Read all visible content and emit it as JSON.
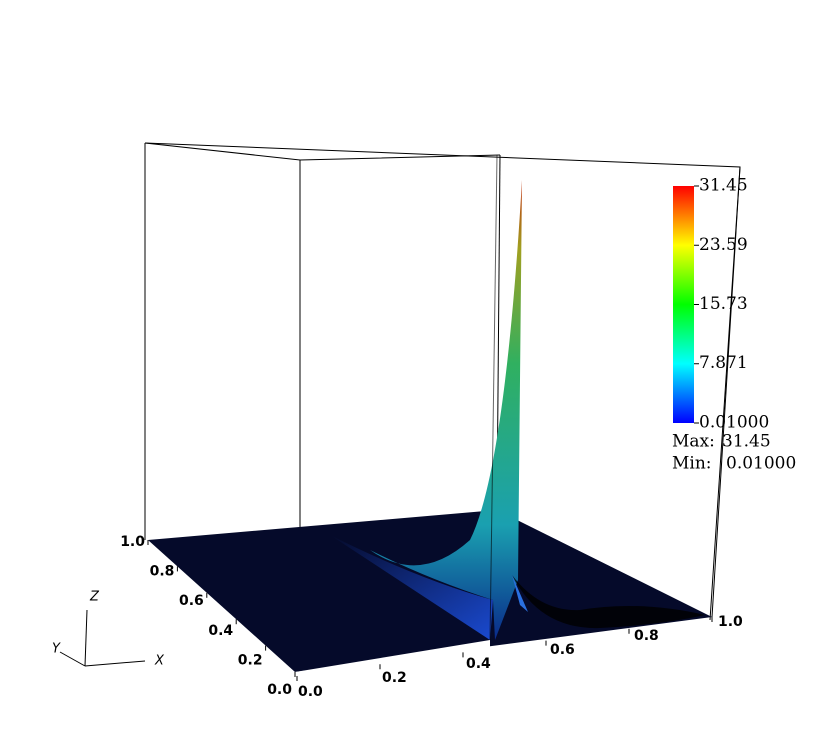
{
  "chart_data": {
    "type": "surface",
    "xticks": [
      {
        "value": 0,
        "label": "0.0"
      },
      {
        "value": 0.2,
        "label": "0.2"
      },
      {
        "value": 0.4,
        "label": "0.4"
      },
      {
        "value": 0.6,
        "label": "0.6"
      },
      {
        "value": 0.8,
        "label": "0.8"
      },
      {
        "value": 1,
        "label": "1.0"
      }
    ],
    "yticks": [
      {
        "value": 0,
        "label": "0.0"
      },
      {
        "value": 0.2,
        "label": "0.2"
      },
      {
        "value": 0.4,
        "label": "0.4"
      },
      {
        "value": 0.6,
        "label": "0.6"
      },
      {
        "value": 0.8,
        "label": "0.8"
      },
      {
        "value": 1,
        "label": "1.0"
      }
    ],
    "xlim": [
      0,
      1
    ],
    "ylim": [
      0,
      1
    ],
    "axis_names": {
      "x": "X",
      "y": "Y",
      "z": "Z"
    },
    "colorbar": {
      "lim": [
        0.01,
        31.45
      ],
      "colors": [
        "#0000ff",
        "#00ffff",
        "#00ff00",
        "#ffff00",
        "#ff0000"
      ],
      "ticks": [
        {
          "value": 31.45,
          "label": "31.45"
        },
        {
          "value": 23.59,
          "label": "23.59"
        },
        {
          "value": 15.73,
          "label": "15.73"
        },
        {
          "value": 7.871,
          "label": "7.871"
        },
        {
          "value": 0.01,
          "label": "0.01000"
        }
      ]
    },
    "max": {
      "label": "Max:",
      "value": 31.45
    },
    "min": {
      "label": "Min:",
      "value": {
        "value": 0.01,
        "label": "0.01000"
      }
    }
  }
}
